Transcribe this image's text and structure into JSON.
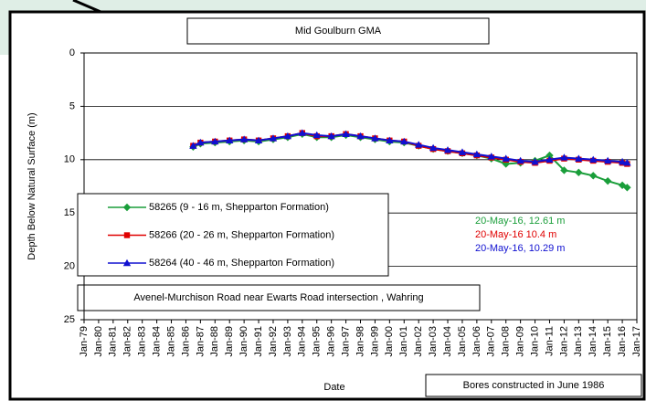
{
  "chart_data": {
    "type": "line",
    "title": "Mid Goulburn GMA",
    "subtitle": "Avenel-Murchison Road near Ewarts Road  intersection , Wahring",
    "note": "Bores constructed in June 1986",
    "x_label": "Date",
    "y_label": "Depth Below Natural Surface (m)",
    "y_inverted": true,
    "grid": true,
    "legend": "left",
    "xlim": [
      "Jan-79",
      "Jan-17"
    ],
    "xticks": [
      "Jan-79",
      "Jan-80",
      "Jan-81",
      "Jan-82",
      "Jan-83",
      "Jan-84",
      "Jan-85",
      "Jan-86",
      "Jan-87",
      "Jan-88",
      "Jan-89",
      "Jan-90",
      "Jan-91",
      "Jan-92",
      "Jan-93",
      "Jan-94",
      "Jan-95",
      "Jan-96",
      "Jan-97",
      "Jan-98",
      "Jan-99",
      "Jan-00",
      "Jan-01",
      "Jan-02",
      "Jan-03",
      "Jan-04",
      "Jan-05",
      "Jan-06",
      "Jan-07",
      "Jan-08",
      "Jan-09",
      "Jan-10",
      "Jan-11",
      "Jan-12",
      "Jan-13",
      "Jan-14",
      "Jan-15",
      "Jan-16",
      "Jan-17"
    ],
    "ylim": [
      0,
      25
    ],
    "yticks": [
      0,
      5,
      10,
      15,
      20,
      25
    ],
    "x": [
      "Jul-86",
      "Jan-87",
      "Jan-88",
      "Jan-89",
      "Jan-90",
      "Jan-91",
      "Jan-92",
      "Jan-93",
      "Jan-94",
      "Jan-95",
      "Jan-96",
      "Jan-97",
      "Jan-98",
      "Jan-99",
      "Jan-00",
      "Jan-01",
      "Jan-02",
      "Jan-03",
      "Jan-04",
      "Jan-05",
      "Jan-06",
      "Jan-07",
      "Jan-08",
      "Jan-09",
      "Jan-10",
      "Jan-11",
      "Jan-12",
      "Jan-13",
      "Jan-14",
      "Jan-15",
      "Jan-16",
      "May-16"
    ],
    "series": [
      {
        "name": "58265 (9 - 16 m, Shepparton Formation)",
        "color": "#1a9e3a",
        "marker": "diamond",
        "values": [
          8.8,
          8.5,
          8.4,
          8.3,
          8.2,
          8.3,
          8.1,
          7.9,
          7.6,
          7.9,
          7.9,
          7.7,
          7.9,
          8.1,
          8.3,
          8.4,
          8.7,
          9.0,
          9.2,
          9.4,
          9.6,
          9.9,
          10.4,
          10.3,
          10.1,
          9.6,
          11.0,
          11.2,
          11.5,
          12.0,
          12.4,
          12.61
        ]
      },
      {
        "name": "58266 (20 - 26 m, Shepparton Formation)",
        "color": "#e00000",
        "marker": "square",
        "values": [
          8.7,
          8.4,
          8.3,
          8.2,
          8.1,
          8.2,
          8.0,
          7.8,
          7.5,
          7.8,
          7.8,
          7.6,
          7.8,
          8.0,
          8.2,
          8.3,
          8.7,
          9.0,
          9.2,
          9.4,
          9.6,
          9.8,
          10.0,
          10.2,
          10.3,
          10.1,
          9.9,
          10.0,
          10.1,
          10.2,
          10.3,
          10.4
        ]
      },
      {
        "name": "58264 (40 - 46 m, Shepparton Formation)",
        "color": "#1010d0",
        "marker": "triangle",
        "values": [
          8.7,
          8.4,
          8.3,
          8.2,
          8.1,
          8.2,
          8.0,
          7.8,
          7.5,
          7.7,
          7.8,
          7.6,
          7.8,
          8.0,
          8.2,
          8.3,
          8.6,
          8.9,
          9.1,
          9.3,
          9.5,
          9.7,
          9.9,
          10.1,
          10.2,
          10.0,
          9.8,
          9.9,
          10.0,
          10.1,
          10.2,
          10.29
        ]
      }
    ],
    "annotations": [
      {
        "text": "20-May-16, 12.61 m",
        "color": "#1a9e3a"
      },
      {
        "text": "20-May-16 10.4 m",
        "color": "#e00000"
      },
      {
        "text": "20-May-16, 10.29 m",
        "color": "#1010d0"
      }
    ]
  }
}
